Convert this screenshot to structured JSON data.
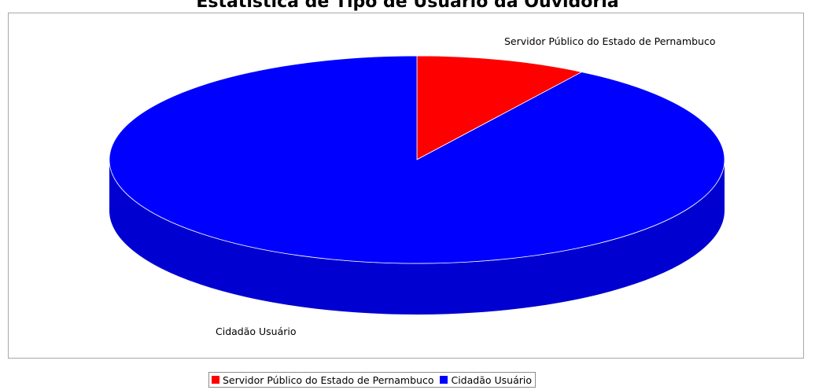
{
  "chart_data": {
    "type": "pie",
    "style": "3d",
    "title": "Estatística de Tipo de Usuário da Ouvidoria",
    "slices": [
      {
        "label": "Servidor Público do Estado de Pernambuco",
        "value": 9,
        "color": "#ff0000"
      },
      {
        "label": "Cidadão Usuário",
        "value": 91,
        "color": "#0000ff"
      }
    ],
    "legend_position": "bottom"
  }
}
